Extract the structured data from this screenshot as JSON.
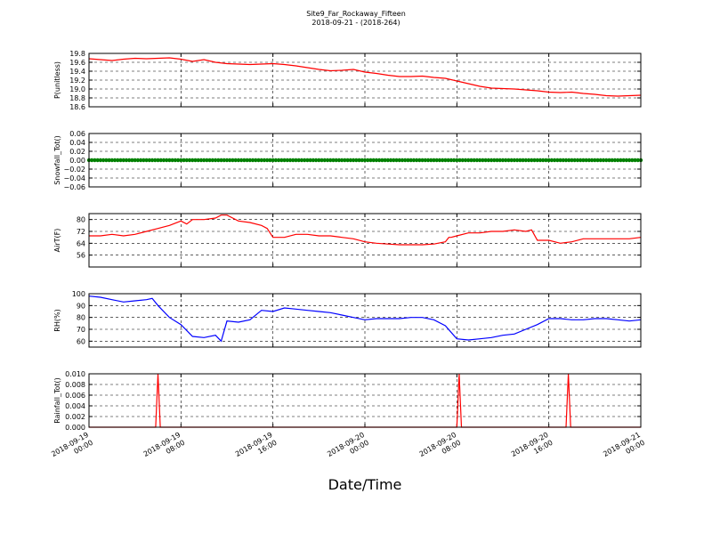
{
  "figure": {
    "title": "Site9_Far_Rockaway_Fifteen",
    "subtitle": "2018-09-21 - (2018-264)",
    "xlabel": "Date/Time"
  },
  "chart_data": [
    {
      "type": "line",
      "ylabel": "P(unitless)",
      "ylim": [
        18.6,
        19.8
      ],
      "yticks": [
        "19.8",
        "19.6",
        "19.4",
        "19.2",
        "19.0",
        "18.8",
        "18.6"
      ],
      "ytick_values": [
        19.8,
        19.6,
        19.4,
        19.2,
        19.0,
        18.8,
        18.6
      ],
      "color": "#ff0000",
      "xlim": [
        0,
        48
      ],
      "x": [
        0,
        1,
        2,
        3,
        4,
        5,
        6,
        7,
        8,
        9,
        10,
        11,
        12,
        13,
        14,
        15,
        16,
        17,
        18,
        19,
        20,
        21,
        22,
        23,
        24,
        25,
        26,
        27,
        28,
        29,
        30,
        31,
        32,
        33,
        34,
        35,
        36,
        37,
        38,
        39,
        40,
        41,
        42,
        43,
        44,
        45,
        46,
        47,
        48
      ],
      "y": [
        19.68,
        19.66,
        19.64,
        19.67,
        19.69,
        19.68,
        19.69,
        19.7,
        19.67,
        19.62,
        19.66,
        19.6,
        19.57,
        19.56,
        19.55,
        19.56,
        19.57,
        19.55,
        19.52,
        19.48,
        19.44,
        19.41,
        19.42,
        19.44,
        19.38,
        19.35,
        19.31,
        19.28,
        19.28,
        19.29,
        19.26,
        19.24,
        19.18,
        19.12,
        19.06,
        19.02,
        19.01,
        19.0,
        18.98,
        18.96,
        18.93,
        18.92,
        18.93,
        18.9,
        18.88,
        18.85,
        18.84,
        18.85,
        18.86
      ],
      "grid": true
    },
    {
      "type": "scatter",
      "ylabel": "Snowfall_Tot()",
      "ylim": [
        -0.06,
        0.06
      ],
      "yticks": [
        "0.06",
        "0.04",
        "0.02",
        "0.00",
        "−0.02",
        "−0.04",
        "−0.06"
      ],
      "ytick_values": [
        0.06,
        0.04,
        0.02,
        0.0,
        -0.02,
        -0.04,
        -0.06
      ],
      "color": "#008000",
      "xlim": [
        0,
        48
      ],
      "x_range": [
        0,
        48
      ],
      "value": 0.0,
      "grid": true
    },
    {
      "type": "line",
      "ylabel": "AirT(F)",
      "ylim": [
        48,
        84
      ],
      "yticks": [
        "80",
        "72",
        "64",
        "56"
      ],
      "ytick_values": [
        80,
        72,
        64,
        56
      ],
      "color": "#ff0000",
      "xlim": [
        0,
        48
      ],
      "x": [
        0,
        1,
        2,
        3,
        4,
        5,
        6,
        7,
        8,
        8.5,
        9,
        10,
        11,
        11.5,
        12,
        13,
        14,
        15,
        15.5,
        16,
        17,
        18,
        19,
        20,
        21,
        22,
        23,
        24,
        25,
        26,
        27,
        28,
        29,
        30,
        31,
        31.3,
        31.5,
        32,
        33,
        34,
        35,
        36,
        37,
        38,
        38.5,
        39,
        40,
        41,
        42,
        43,
        44,
        45,
        46,
        47,
        48
      ],
      "y": [
        69,
        69,
        70,
        69,
        70,
        72,
        74,
        76,
        79,
        77,
        80,
        80,
        81,
        83,
        83,
        79,
        78,
        76,
        74,
        68,
        68,
        70,
        70,
        69,
        69,
        68,
        67,
        65,
        64,
        63.5,
        63,
        63,
        63,
        63.5,
        65,
        68,
        68,
        69,
        71,
        71,
        72,
        72,
        73,
        72,
        73,
        66,
        66,
        64,
        65,
        67,
        67,
        67,
        67,
        67,
        68
      ],
      "grid": true
    },
    {
      "type": "line",
      "ylabel": "RH(%)",
      "ylim": [
        55,
        100
      ],
      "yticks": [
        "100",
        "90",
        "80",
        "70",
        "60"
      ],
      "ytick_values": [
        100,
        90,
        80,
        70,
        60
      ],
      "color": "#0000ff",
      "xlim": [
        0,
        48
      ],
      "x": [
        0,
        1,
        2,
        3,
        4,
        5,
        5.5,
        6,
        7,
        8,
        9,
        10,
        11,
        11.5,
        12,
        13,
        14,
        15,
        16,
        17,
        18,
        19,
        20,
        21,
        22,
        23,
        24,
        25,
        26,
        27,
        28,
        29,
        30,
        31,
        32,
        33,
        34,
        35,
        36,
        37,
        38,
        39,
        40,
        41,
        42,
        43,
        44,
        45,
        46,
        47,
        48
      ],
      "y": [
        98,
        97,
        95,
        93,
        94,
        95,
        96,
        90,
        80,
        74,
        64,
        63,
        65,
        60,
        77,
        76,
        78,
        86,
        85,
        88,
        87,
        86,
        85,
        84,
        82,
        80,
        78,
        79,
        79,
        79,
        80,
        80,
        78,
        73,
        62,
        61,
        62,
        63,
        65,
        66,
        70,
        74,
        79,
        79,
        78,
        78,
        79,
        79,
        78,
        77,
        78
      ],
      "grid": true
    },
    {
      "type": "line",
      "ylabel": "Rainfall_Tot()",
      "ylim": [
        0.0,
        0.01
      ],
      "yticks": [
        "0.010",
        "0.008",
        "0.006",
        "0.004",
        "0.002",
        "0.000"
      ],
      "ytick_values": [
        0.01,
        0.008,
        0.006,
        0.004,
        0.002,
        0.0
      ],
      "color": "#ff0000",
      "xlim": [
        0,
        48
      ],
      "x": [
        0,
        5.8,
        6.0,
        6.2,
        32.0,
        32.2,
        32.4,
        41.5,
        41.7,
        41.9,
        48
      ],
      "y": [
        0,
        0,
        0.01,
        0,
        0,
        0.01,
        0,
        0,
        0.01,
        0,
        0
      ],
      "grid": true
    }
  ],
  "x_axis": {
    "tick_hours": [
      0,
      8,
      16,
      24,
      32,
      40,
      48
    ],
    "tick_labels": [
      [
        "2018-09-19",
        "00:00"
      ],
      [
        "2018-09-19",
        "08:00"
      ],
      [
        "2018-09-19",
        "16:00"
      ],
      [
        "2018-09-20",
        "00:00"
      ],
      [
        "2018-09-20",
        "08:00"
      ],
      [
        "2018-09-20",
        "16:00"
      ],
      [
        "2018-09-21",
        "00:00"
      ]
    ]
  }
}
